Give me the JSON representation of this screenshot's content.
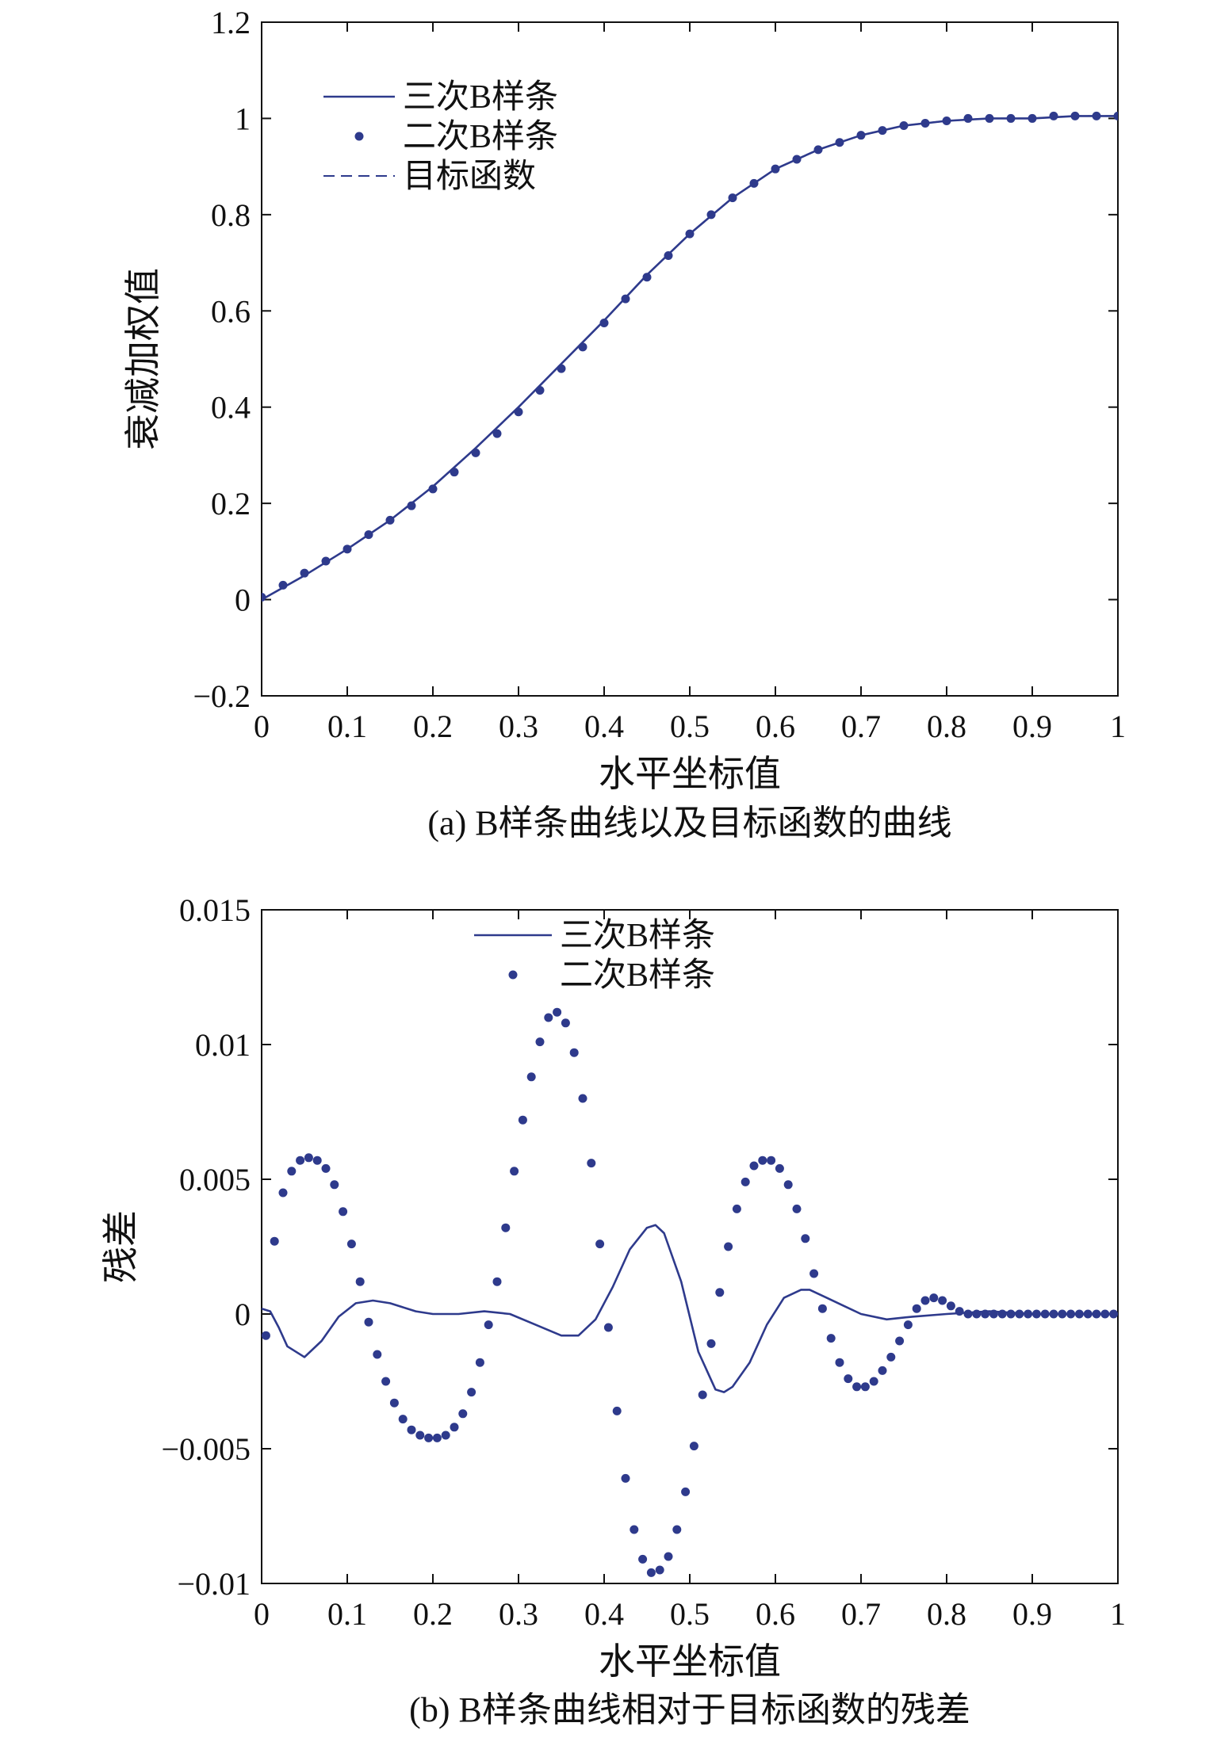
{
  "colors": {
    "series": "#2e3a8c",
    "axis": "#111111",
    "background": "#ffffff"
  },
  "chart_data": [
    {
      "type": "line",
      "caption": "(a) B样条曲线以及目标函数的曲线",
      "xlabel": "水平坐标值",
      "ylabel": "衰减加权值",
      "xlim": [
        0,
        1
      ],
      "ylim": [
        -0.2,
        1.2
      ],
      "xticks": [
        "0",
        "0.1",
        "0.2",
        "0.3",
        "0.4",
        "0.5",
        "0.6",
        "0.7",
        "0.8",
        "0.9",
        "1"
      ],
      "yticks": [
        "−0.2",
        "0",
        "0.2",
        "0.4",
        "0.6",
        "0.8",
        "1",
        "1.2"
      ],
      "legend_position": "top-left",
      "series": [
        {
          "name": "三次B样条",
          "style": "solid",
          "x": [
            0,
            0.05,
            0.1,
            0.15,
            0.2,
            0.25,
            0.3,
            0.35,
            0.4,
            0.45,
            0.5,
            0.55,
            0.6,
            0.65,
            0.7,
            0.75,
            0.8,
            0.85,
            0.9,
            0.95,
            1
          ],
          "y": [
            0,
            0.05,
            0.105,
            0.165,
            0.235,
            0.315,
            0.4,
            0.49,
            0.58,
            0.675,
            0.76,
            0.835,
            0.895,
            0.935,
            0.965,
            0.985,
            0.995,
            1.0,
            1.0,
            1.005,
            1.005
          ]
        },
        {
          "name": "二次B样条",
          "style": "dots",
          "x": [
            0,
            0.025,
            0.05,
            0.075,
            0.1,
            0.125,
            0.15,
            0.175,
            0.2,
            0.225,
            0.25,
            0.275,
            0.3,
            0.325,
            0.35,
            0.375,
            0.4,
            0.425,
            0.45,
            0.475,
            0.5,
            0.525,
            0.55,
            0.575,
            0.6,
            0.625,
            0.65,
            0.675,
            0.7,
            0.725,
            0.75,
            0.775,
            0.8,
            0.825,
            0.85,
            0.875,
            0.9,
            0.925,
            0.95,
            0.975,
            1
          ],
          "y": [
            0.005,
            0.03,
            0.055,
            0.08,
            0.105,
            0.135,
            0.165,
            0.195,
            0.23,
            0.265,
            0.305,
            0.345,
            0.39,
            0.435,
            0.48,
            0.525,
            0.575,
            0.625,
            0.67,
            0.715,
            0.76,
            0.8,
            0.835,
            0.865,
            0.895,
            0.915,
            0.935,
            0.95,
            0.965,
            0.975,
            0.985,
            0.99,
            0.995,
            1.0,
            1.0,
            1.0,
            1.0,
            1.005,
            1.005,
            1.005,
            1.005
          ]
        },
        {
          "name": "目标函数",
          "style": "dashed",
          "x": [
            0,
            0.05,
            0.1,
            0.15,
            0.2,
            0.25,
            0.3,
            0.35,
            0.4,
            0.45,
            0.5,
            0.55,
            0.6,
            0.65,
            0.7,
            0.75,
            0.8,
            0.85,
            0.9,
            0.95,
            1
          ],
          "y": [
            0,
            0.05,
            0.105,
            0.165,
            0.235,
            0.315,
            0.4,
            0.49,
            0.58,
            0.675,
            0.76,
            0.835,
            0.895,
            0.935,
            0.965,
            0.985,
            0.995,
            1.0,
            1.0,
            1.005,
            1.005
          ]
        }
      ]
    },
    {
      "type": "line",
      "caption": "(b) B样条曲线相对于目标函数的残差",
      "xlabel": "水平坐标值",
      "ylabel": "残差",
      "xlim": [
        0,
        1
      ],
      "ylim": [
        -0.01,
        0.015
      ],
      "xticks": [
        "0",
        "0.1",
        "0.2",
        "0.3",
        "0.4",
        "0.5",
        "0.6",
        "0.7",
        "0.8",
        "0.9",
        "1"
      ],
      "yticks": [
        "−0.01",
        "−0.005",
        "0",
        "0.005",
        "0.01",
        "0.015"
      ],
      "legend_position": "top-center",
      "series": [
        {
          "name": "三次B样条",
          "style": "solid",
          "x": [
            0,
            0.01,
            0.02,
            0.03,
            0.05,
            0.07,
            0.09,
            0.11,
            0.13,
            0.15,
            0.18,
            0.2,
            0.23,
            0.26,
            0.29,
            0.32,
            0.35,
            0.37,
            0.39,
            0.41,
            0.43,
            0.45,
            0.46,
            0.47,
            0.49,
            0.51,
            0.53,
            0.54,
            0.55,
            0.57,
            0.59,
            0.61,
            0.63,
            0.64,
            0.66,
            0.68,
            0.7,
            0.73,
            0.76,
            0.8,
            0.85,
            0.9,
            0.95,
            1
          ],
          "y": [
            0.0002,
            0.0001,
            -0.0005,
            -0.0012,
            -0.0016,
            -0.001,
            -0.0001,
            0.0004,
            0.0005,
            0.0004,
            0.0001,
            0.0,
            0.0,
            0.0001,
            0.0,
            -0.0004,
            -0.0008,
            -0.0008,
            -0.0002,
            0.001,
            0.0024,
            0.0032,
            0.0033,
            0.003,
            0.0012,
            -0.0014,
            -0.0028,
            -0.0029,
            -0.0027,
            -0.0018,
            -0.0004,
            0.0006,
            0.0009,
            0.0009,
            0.0006,
            0.0003,
            0.0,
            -0.0002,
            -0.0001,
            0.0,
            0.0001,
            0.0,
            0.0,
            0.0
          ]
        },
        {
          "name": "二次B样条",
          "style": "dots",
          "x": [
            0.005,
            0.015,
            0.025,
            0.035,
            0.045,
            0.055,
            0.065,
            0.075,
            0.085,
            0.095,
            0.105,
            0.115,
            0.125,
            0.135,
            0.145,
            0.155,
            0.165,
            0.175,
            0.185,
            0.195,
            0.205,
            0.215,
            0.225,
            0.235,
            0.245,
            0.255,
            0.265,
            0.275,
            0.285,
            0.295,
            0.305,
            0.315,
            0.325,
            0.335,
            0.345,
            0.355,
            0.365,
            0.375,
            0.385,
            0.395,
            0.405,
            0.415,
            0.425,
            0.435,
            0.445,
            0.455,
            0.465,
            0.475,
            0.485,
            0.495,
            0.505,
            0.515,
            0.525,
            0.535,
            0.545,
            0.555,
            0.565,
            0.575,
            0.585,
            0.595,
            0.605,
            0.615,
            0.625,
            0.635,
            0.645,
            0.655,
            0.665,
            0.675,
            0.685,
            0.695,
            0.705,
            0.715,
            0.725,
            0.735,
            0.745,
            0.755,
            0.765,
            0.775,
            0.785,
            0.795,
            0.805,
            0.815,
            0.825,
            0.835,
            0.845,
            0.855,
            0.865,
            0.875,
            0.885,
            0.895,
            0.905,
            0.915,
            0.925,
            0.935,
            0.945,
            0.955,
            0.965,
            0.975,
            0.985,
            0.995
          ],
          "y": [
            -0.0008,
            0.0027,
            0.0045,
            0.0053,
            0.0057,
            0.0058,
            0.0057,
            0.0054,
            0.0048,
            0.0038,
            0.0026,
            0.0012,
            -0.0003,
            -0.0015,
            -0.0025,
            -0.0033,
            -0.0039,
            -0.0043,
            -0.0045,
            -0.0046,
            -0.0046,
            -0.0045,
            -0.0042,
            -0.0037,
            -0.0029,
            -0.0018,
            -0.0004,
            0.0012,
            0.0032,
            0.0053,
            0.0072,
            0.0088,
            0.0101,
            0.011,
            0.0112,
            0.0108,
            0.0097,
            0.008,
            0.0056,
            0.0026,
            -0.0005,
            -0.0036,
            -0.0061,
            -0.008,
            -0.0091,
            -0.0096,
            -0.0095,
            -0.009,
            -0.008,
            -0.0066,
            -0.0049,
            -0.003,
            -0.0011,
            0.0008,
            0.0025,
            0.0039,
            0.0049,
            0.0055,
            0.0057,
            0.0057,
            0.0054,
            0.0048,
            0.0039,
            0.0028,
            0.0015,
            0.0002,
            -0.0009,
            -0.0018,
            -0.0024,
            -0.0027,
            -0.0027,
            -0.0025,
            -0.0021,
            -0.0016,
            -0.001,
            -0.0004,
            0.0002,
            0.0005,
            0.0006,
            0.0005,
            0.0003,
            0.0001,
            0.0,
            0.0,
            0.0,
            0.0,
            0.0,
            0.0,
            0.0,
            0.0,
            0.0,
            0.0,
            0.0,
            0.0,
            0.0,
            0.0,
            0.0,
            0.0,
            0.0,
            0.0
          ]
        }
      ]
    }
  ]
}
